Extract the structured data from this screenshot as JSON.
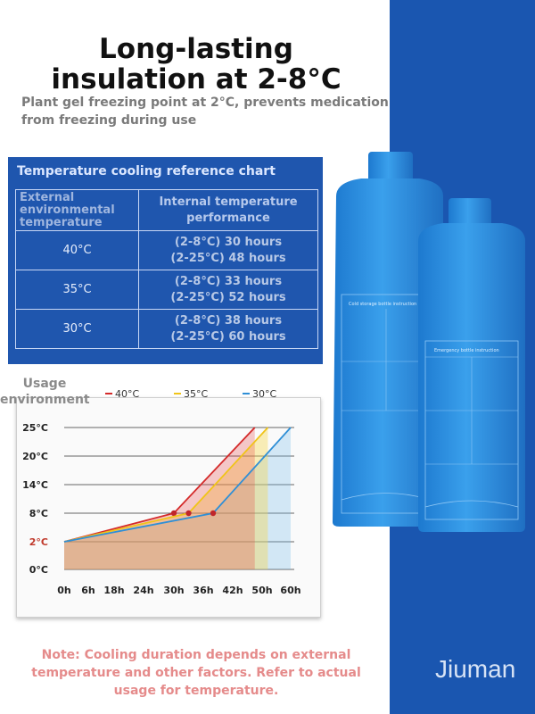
{
  "header": {
    "title_line1": "Long-lasting",
    "title_line2": "insulation at 2-8°C",
    "subtitle": "Plant gel freezing point at 2°C, prevents medication from freezing during use"
  },
  "table": {
    "title": "Temperature cooling reference chart",
    "col1_header": "External environmental temperature",
    "col2_header": "Internal temperature performance",
    "rows": [
      {
        "external": "40°C",
        "line1": "(2-8°C) 30 hours",
        "line2": "(2-25°C) 48 hours"
      },
      {
        "external": "35°C",
        "line1": "(2-8°C) 33 hours",
        "line2": "(2-25°C) 52 hours"
      },
      {
        "external": "30°C",
        "line1": "(2-8°C) 38 hours",
        "line2": "(2-25°C) 60 hours"
      }
    ]
  },
  "chart_data": {
    "type": "line",
    "ylabel": "Usage environment",
    "x_ticks": [
      "0h",
      "6h",
      "18h",
      "24h",
      "30h",
      "36h",
      "42h",
      "50h",
      "60h"
    ],
    "y_ticks": [
      "0°C",
      "2°C",
      "8°C",
      "14°C",
      "20°C",
      "25°C"
    ],
    "series": [
      {
        "name": "40°C",
        "color": "#d42a2a",
        "points": [
          [
            0,
            2
          ],
          [
            30,
            8
          ],
          [
            48,
            25
          ]
        ]
      },
      {
        "name": "35°C",
        "color": "#f0c419",
        "points": [
          [
            0,
            2
          ],
          [
            33,
            8
          ],
          [
            52,
            25
          ]
        ]
      },
      {
        "name": "30°C",
        "color": "#2f8fd6",
        "points": [
          [
            0,
            2
          ],
          [
            38,
            8
          ],
          [
            60,
            25
          ]
        ]
      }
    ]
  },
  "bottles": {
    "back_label": "Cold storage bottle instruction",
    "front_label": "Emergency bottle instruction",
    "body_color": "#2e8fe0"
  },
  "footer": {
    "note": "Note: Cooling duration depends on external temperature and other factors. Refer to actual usage for temperature.",
    "brand": "Jiuman"
  }
}
